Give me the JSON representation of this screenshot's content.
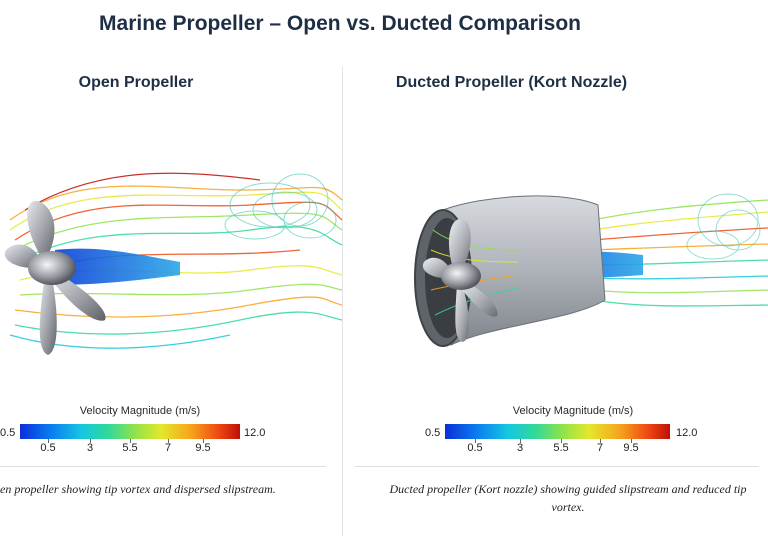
{
  "title": "Marine Propeller – Open vs. Ducted Comparison",
  "left": {
    "heading": "Open Propeller",
    "colorbar_title": "Velocity Magnitude (m/s)",
    "min_label": "0.5",
    "max_label": "12.0",
    "ticks": [
      "0.5",
      "3",
      "5.5",
      "7",
      "9.5"
    ],
    "caption": "en propeller showing tip vortex and dispersed slipstream."
  },
  "right": {
    "heading": "Ducted Propeller (Kort Nozzle)",
    "colorbar_title": "Velocity Magnitude (m/s)",
    "min_label": "0.5",
    "max_label": "12.0",
    "ticks": [
      "0.5",
      "3",
      "5.5",
      "7",
      "9.5"
    ],
    "caption": "Ducted propeller (Kort nozzle) showing guided slipstream and reduced tip vortex."
  },
  "colors": {
    "low": "#0b2fd6",
    "mid": "#8fe24a",
    "high": "#c00e0a",
    "blade": "#8a8d92",
    "duct": "#b5b9c0"
  }
}
